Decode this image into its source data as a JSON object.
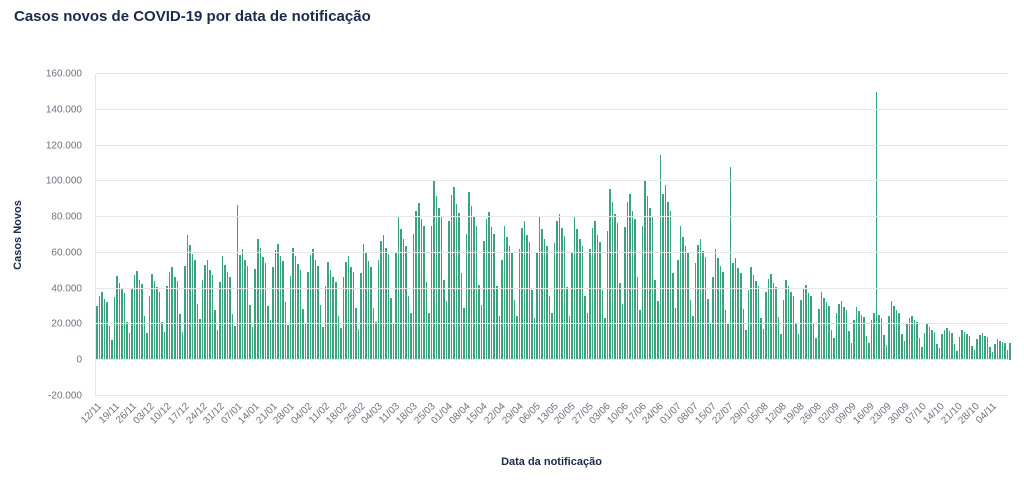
{
  "colors": {
    "title": "#1b2a4b",
    "axis_title": "#1b2a4b",
    "tick_label": "#6b7280",
    "grid": "#e7e7e7",
    "bar": "#3aa57c",
    "background": "#ffffff"
  },
  "chart_data": {
    "type": "bar",
    "title": "Casos novos de COVID-19 por data de notificação",
    "xlabel": "Data da notificação",
    "ylabel": "Casos Novos",
    "ylim": [
      -20000,
      160000
    ],
    "y_tick_interval": 20000,
    "y_tick_labels": [
      "-20.000",
      "0",
      "20.000",
      "40.000",
      "60.000",
      "80.000",
      "100.000",
      "120.000",
      "140.000",
      "160.000"
    ],
    "x_tick_labels": [
      "12/11",
      "19/11",
      "26/11",
      "03/12",
      "10/12",
      "17/12",
      "24/12",
      "31/12",
      "07/01",
      "14/01",
      "21/01",
      "28/01",
      "04/02",
      "11/02",
      "18/02",
      "25/02",
      "04/03",
      "11/03",
      "18/03",
      "25/03",
      "01/04",
      "08/04",
      "15/04",
      "22/04",
      "29/04",
      "06/05",
      "13/05",
      "20/05",
      "27/05",
      "03/06",
      "10/06",
      "17/06",
      "24/06",
      "01/07",
      "08/07",
      "15/07",
      "22/07",
      "29/07",
      "05/08",
      "12/08",
      "19/08",
      "26/08",
      "02/09",
      "09/09",
      "16/09",
      "23/09",
      "30/09",
      "07/10",
      "14/10",
      "21/10",
      "28/10",
      "04/11"
    ],
    "x_tick_every_n_bars": 7,
    "grid": true,
    "legend": false,
    "bar_color": "#3aa57c",
    "values": [
      30400,
      36100,
      38000,
      34200,
      32300,
      19000,
      11400,
      35200,
      47000,
      43200,
      39900,
      37600,
      21200,
      15500,
      40000,
      47500,
      50000,
      45000,
      42500,
      25000,
      15000,
      36000,
      48000,
      44200,
      40800,
      38400,
      21600,
      15800,
      41600,
      49400,
      52000,
      46800,
      44200,
      26000,
      15600,
      52500,
      70000,
      64400,
      59500,
      56000,
      31500,
      23100,
      44800,
      53200,
      56000,
      50400,
      47600,
      28000,
      16800,
      43500,
      58000,
      53400,
      49300,
      46400,
      26100,
      19100,
      87000,
      58900,
      62000,
      55800,
      52700,
      31000,
      18600,
      51000,
      68000,
      62600,
      57800,
      54400,
      30600,
      22400,
      52000,
      61800,
      65000,
      58500,
      55300,
      32500,
      19500,
      47300,
      63000,
      58000,
      53600,
      50400,
      28400,
      20800,
      49600,
      58900,
      62000,
      55800,
      52700,
      31000,
      18600,
      41300,
      55000,
      50600,
      46800,
      44000,
      24800,
      18200,
      46400,
      55100,
      58000,
      52200,
      49300,
      29000,
      17400,
      48800,
      65000,
      59800,
      55300,
      52000,
      29300,
      21400,
      56000,
      66500,
      70000,
      63000,
      59500,
      35000,
      21000,
      60000,
      80000,
      73600,
      68000,
      64000,
      36000,
      26400,
      70400,
      83600,
      88000,
      79200,
      74800,
      44000,
      26400,
      75000,
      100000,
      92000,
      85000,
      80000,
      45000,
      33000,
      77600,
      92200,
      97000,
      87300,
      82500,
      48500,
      29100,
      70500,
      94000,
      86500,
      79900,
      75200,
      42300,
      31000,
      66400,
      78900,
      83000,
      74700,
      70600,
      41500,
      24900,
      56300,
      75000,
      69000,
      63800,
      60000,
      33800,
      24800,
      62400,
      74100,
      78000,
      70200,
      66300,
      39000,
      23400,
      60000,
      80000,
      73600,
      68000,
      64000,
      36000,
      26400,
      65600,
      77900,
      82000,
      73800,
      69700,
      41000,
      24600,
      60000,
      80000,
      73600,
      68000,
      64000,
      36000,
      26400,
      62400,
      74100,
      78000,
      70200,
      66300,
      39000,
      23400,
      72000,
      96000,
      88300,
      81600,
      76800,
      43200,
      31700,
      74400,
      88400,
      93000,
      83700,
      79100,
      46500,
      27900,
      75000,
      100000,
      92000,
      85000,
      80000,
      45000,
      33000,
      115000,
      93100,
      98000,
      88200,
      83300,
      49000,
      29400,
      56300,
      75000,
      69000,
      63800,
      60000,
      33800,
      24800,
      54400,
      64600,
      68000,
      61200,
      57800,
      34000,
      20400,
      46500,
      62000,
      57000,
      52700,
      49600,
      27900,
      20500,
      108000,
      54200,
      57000,
      51300,
      48500,
      28500,
      17100,
      39000,
      52000,
      47800,
      44200,
      41600,
      23400,
      17200,
      38400,
      45600,
      48000,
      43200,
      40800,
      24000,
      14400,
      33800,
      45000,
      41400,
      38300,
      36000,
      20300,
      14900,
      33600,
      39900,
      42000,
      37800,
      35700,
      21000,
      12600,
      28500,
      38000,
      35000,
      32300,
      30400,
      17100,
      12500,
      26400,
      31400,
      33000,
      29700,
      28100,
      16500,
      9900,
      22500,
      30000,
      27600,
      25500,
      24000,
      13500,
      9900,
      22400,
      26600,
      150000,
      25200,
      23800,
      14000,
      8400,
      24800,
      33000,
      30400,
      28100,
      26400,
      14900,
      10900,
      20000,
      23800,
      25000,
      22500,
      21300,
      12500,
      7500,
      15000,
      20000,
      18400,
      17000,
      16000,
      9000,
      6600,
      14400,
      17100,
      18000,
      16200,
      15300,
      9000,
      5400,
      12800,
      17000,
      15600,
      14500,
      13600,
      7700,
      5600,
      12000,
      14300,
      15000,
      13500,
      12800,
      7500,
      4500,
      9000,
      12000,
      11000,
      10200,
      9600,
      6000,
      9500
    ]
  }
}
